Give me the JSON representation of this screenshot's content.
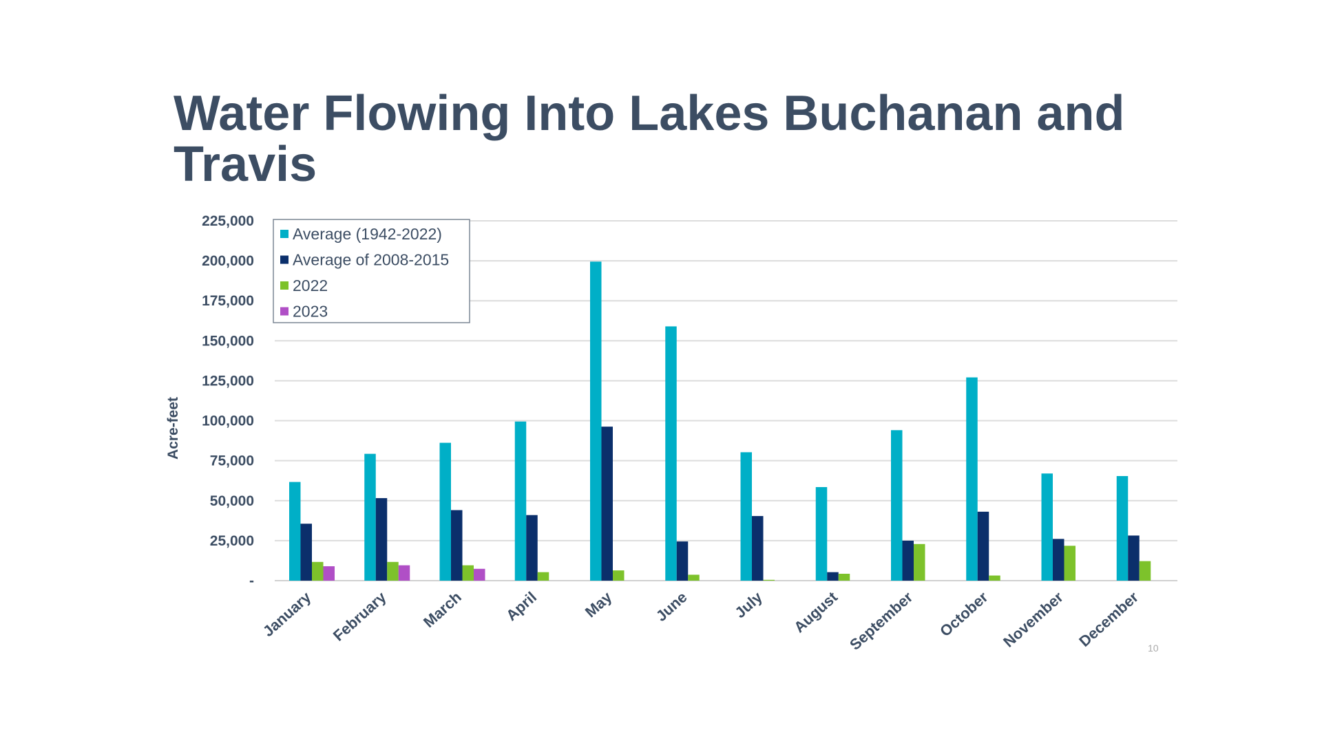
{
  "chart_data": {
    "type": "bar",
    "title": "Water Flowing Into Lakes Buchanan and Travis",
    "xlabel": "",
    "ylabel": "Acre-feet",
    "ylim": [
      0,
      225000
    ],
    "yticks": [
      "-",
      "25,000",
      "50,000",
      "75,000",
      "100,000",
      "125,000",
      "150,000",
      "175,000",
      "200,000",
      "225,000"
    ],
    "grid": true,
    "legend_position": "top-left",
    "categories": [
      "January",
      "February",
      "March",
      "April",
      "May",
      "June",
      "July",
      "August",
      "September",
      "October",
      "November",
      "December"
    ],
    "series": [
      {
        "name": "Average (1942-2022)",
        "color": "#00afc7",
        "values": [
          61700,
          79300,
          86200,
          99500,
          199500,
          159000,
          80300,
          58500,
          94100,
          127100,
          67000,
          65400
        ]
      },
      {
        "name": "Average of 2008-2015",
        "color": "#0b2f6b",
        "values": [
          35600,
          51600,
          44100,
          41000,
          96300,
          24500,
          40400,
          5300,
          25000,
          43100,
          26100,
          28200
        ]
      },
      {
        "name": "2022",
        "color": "#7dc22b",
        "values": [
          11700,
          11700,
          9600,
          5300,
          6400,
          3700,
          500,
          4300,
          22900,
          3200,
          21800,
          12200
        ]
      },
      {
        "name": "2023",
        "color": "#b04fc6",
        "values": [
          9000,
          9600,
          7400,
          null,
          null,
          null,
          null,
          null,
          null,
          null,
          null,
          null
        ]
      }
    ]
  },
  "page_number": "10"
}
